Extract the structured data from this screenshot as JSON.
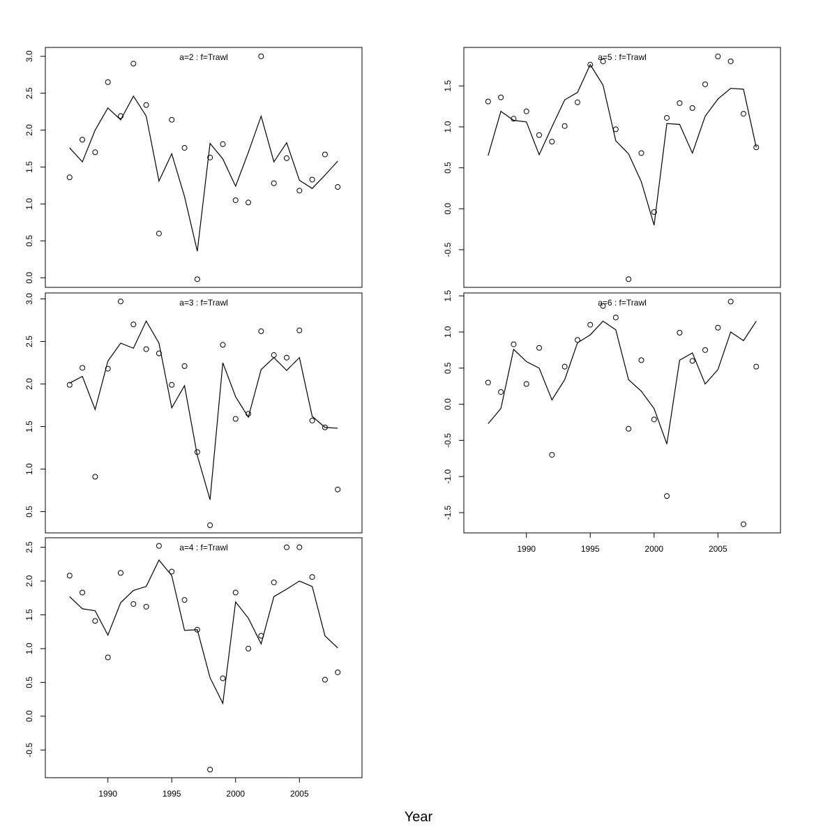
{
  "xlabel": "Year",
  "chart_data": [
    {
      "type": "line",
      "title": "a=2  :  f=Trawl",
      "title_color": "#808080",
      "x": [
        1987,
        1988,
        1989,
        1990,
        1991,
        1992,
        1993,
        1994,
        1995,
        1996,
        1997,
        1998,
        1999,
        2000,
        2001,
        2002,
        2003,
        2004,
        2005,
        2006,
        2007,
        2008
      ],
      "series": [
        {
          "type": "scatter",
          "color": "#000000",
          "values": [
            1.36,
            1.87,
            1.7,
            2.65,
            2.19,
            2.9,
            2.34,
            0.6,
            2.14,
            1.76,
            -0.02,
            1.63,
            1.81,
            1.05,
            1.02,
            3.0,
            1.28,
            1.62,
            1.18,
            1.33,
            1.67,
            1.23
          ]
        },
        {
          "type": "line",
          "color": "#000000",
          "values": [
            1.76,
            1.57,
            2.0,
            2.3,
            2.14,
            2.46,
            2.19,
            1.31,
            1.68,
            1.1,
            0.36,
            1.82,
            1.61,
            1.24,
            1.7,
            2.19,
            1.57,
            1.83,
            1.32,
            1.21,
            1.39,
            1.58
          ]
        }
      ],
      "xlim": [
        1985.1,
        2009.9
      ],
      "ylim": [
        -0.13,
        3.12
      ],
      "yticks": [
        {
          "value": 0,
          "label": "0.0"
        },
        0.5,
        {
          "value": 1,
          "label": "1.0"
        },
        1.5,
        {
          "value": 2,
          "label": "2.0"
        },
        2.5,
        {
          "value": 3,
          "label": "3.0"
        }
      ]
    },
    {
      "type": "line",
      "title": "a=3  :  f=Trawl",
      "title_color": "#808080",
      "x": [
        1987,
        1988,
        1989,
        1990,
        1991,
        1992,
        1993,
        1994,
        1995,
        1996,
        1997,
        1998,
        1999,
        2000,
        2001,
        2002,
        2003,
        2004,
        2005,
        2006,
        2007,
        2008
      ],
      "series": [
        {
          "type": "scatter",
          "color": "#000000",
          "values": [
            1.99,
            2.19,
            0.91,
            2.18,
            2.97,
            2.7,
            2.41,
            2.36,
            1.99,
            2.21,
            1.2,
            0.34,
            2.46,
            1.59,
            1.65,
            2.62,
            2.34,
            2.31,
            2.63,
            1.57,
            1.49,
            0.76
          ]
        },
        {
          "type": "line",
          "color": "#000000",
          "values": [
            2.01,
            2.09,
            1.7,
            2.27,
            2.48,
            2.42,
            2.74,
            2.48,
            1.72,
            1.98,
            1.16,
            0.64,
            2.25,
            1.85,
            1.61,
            2.17,
            2.31,
            2.16,
            2.31,
            1.62,
            1.49,
            1.48
          ]
        }
      ],
      "xlim": [
        1985.1,
        2009.9
      ],
      "ylim": [
        0.25,
        3.07
      ],
      "yticks": [
        0.5,
        {
          "value": 1,
          "label": "1.0"
        },
        1.5,
        {
          "value": 2,
          "label": "2.0"
        },
        2.5,
        {
          "value": 3,
          "label": "3.0"
        }
      ]
    },
    {
      "type": "line",
      "title": "a=4  :  f=Trawl",
      "title_color": "#808080",
      "x": [
        1987,
        1988,
        1989,
        1990,
        1991,
        1992,
        1993,
        1994,
        1995,
        1996,
        1997,
        1998,
        1999,
        2000,
        2001,
        2002,
        2003,
        2004,
        2005,
        2006,
        2007,
        2008
      ],
      "series": [
        {
          "type": "scatter",
          "color": "#000000",
          "values": [
            2.08,
            1.83,
            1.41,
            0.87,
            2.12,
            1.66,
            1.62,
            2.52,
            2.14,
            1.72,
            1.28,
            -0.79,
            0.56,
            1.83,
            1.0,
            1.19,
            1.98,
            2.5,
            2.5,
            2.06,
            0.54,
            0.65
          ]
        },
        {
          "type": "line",
          "color": "#000000",
          "values": [
            1.77,
            1.59,
            1.56,
            1.2,
            1.68,
            1.86,
            1.92,
            2.31,
            2.08,
            1.27,
            1.28,
            0.57,
            0.19,
            1.69,
            1.45,
            1.07,
            1.77,
            1.88,
            2.0,
            1.92,
            1.19,
            1.01
          ]
        }
      ],
      "xlim": [
        1985.1,
        2009.9
      ],
      "ylim": [
        -0.91,
        2.64
      ],
      "xticks": [
        1990,
        1995,
        2000,
        2005
      ],
      "yticks": [
        -0.5,
        {
          "value": 0,
          "label": "0.0"
        },
        0.5,
        {
          "value": 1,
          "label": "1.0"
        },
        1.5,
        {
          "value": 2,
          "label": "2.0"
        },
        2.5
      ]
    },
    {
      "type": "line",
      "title": "a=5  :  f=Trawl",
      "title_color": "#808080",
      "x": [
        1987,
        1988,
        1989,
        1990,
        1991,
        1992,
        1993,
        1994,
        1995,
        1996,
        1997,
        1998,
        1999,
        2000,
        2001,
        2002,
        2003,
        2004,
        2005,
        2006,
        2007,
        2008
      ],
      "series": [
        {
          "type": "scatter",
          "color": "#000000",
          "values": [
            1.31,
            1.36,
            1.1,
            1.19,
            0.9,
            0.82,
            1.01,
            1.3,
            1.76,
            1.8,
            0.97,
            -0.86,
            0.68,
            -0.04,
            1.11,
            1.29,
            1.23,
            1.52,
            1.86,
            1.8,
            1.16,
            0.75
          ]
        },
        {
          "type": "line",
          "color": "#000000",
          "values": [
            0.65,
            1.19,
            1.08,
            1.06,
            0.66,
            1.0,
            1.33,
            1.42,
            1.76,
            1.51,
            0.83,
            0.67,
            0.33,
            -0.2,
            1.04,
            1.03,
            0.68,
            1.13,
            1.34,
            1.47,
            1.46,
            0.75
          ]
        }
      ],
      "xlim": [
        1985.1,
        2009.9
      ],
      "ylim": [
        -0.96,
        1.97
      ],
      "yticks": [
        -0.5,
        {
          "value": 0,
          "label": "0.0"
        },
        0.5,
        {
          "value": 1,
          "label": "1.0"
        },
        1.5
      ]
    },
    {
      "type": "line",
      "title": "a=6  :  f=Trawl",
      "title_color": "#808080",
      "x": [
        1987,
        1988,
        1989,
        1990,
        1991,
        1992,
        1993,
        1994,
        1995,
        1996,
        1997,
        1998,
        1999,
        2000,
        2001,
        2002,
        2003,
        2004,
        2005,
        2006,
        2007,
        2008
      ],
      "series": [
        {
          "type": "scatter",
          "color": "#000000",
          "values": [
            0.3,
            0.17,
            0.83,
            0.28,
            0.78,
            -0.7,
            0.52,
            0.89,
            1.1,
            1.36,
            1.2,
            -0.34,
            0.61,
            -0.21,
            -1.27,
            0.99,
            0.6,
            0.75,
            1.06,
            1.42,
            -1.66,
            0.52
          ]
        },
        {
          "type": "line",
          "color": "#000000",
          "values": [
            -0.27,
            -0.06,
            0.76,
            0.59,
            0.5,
            0.06,
            0.34,
            0.85,
            0.96,
            1.15,
            1.03,
            0.34,
            0.18,
            -0.06,
            -0.55,
            0.61,
            0.71,
            0.28,
            0.48,
            1.0,
            0.88,
            1.15
          ]
        }
      ],
      "xlim": [
        1985.1,
        2009.9
      ],
      "ylim": [
        -1.78,
        1.54
      ],
      "xticks": [
        1990,
        1995,
        2000,
        2005
      ],
      "yticks": [
        -1.5,
        {
          "value": -1,
          "label": "-1.0"
        },
        -0.5,
        {
          "value": 0,
          "label": "0.0"
        },
        0.5,
        {
          "value": 1,
          "label": "1.0"
        },
        1.5
      ]
    }
  ]
}
